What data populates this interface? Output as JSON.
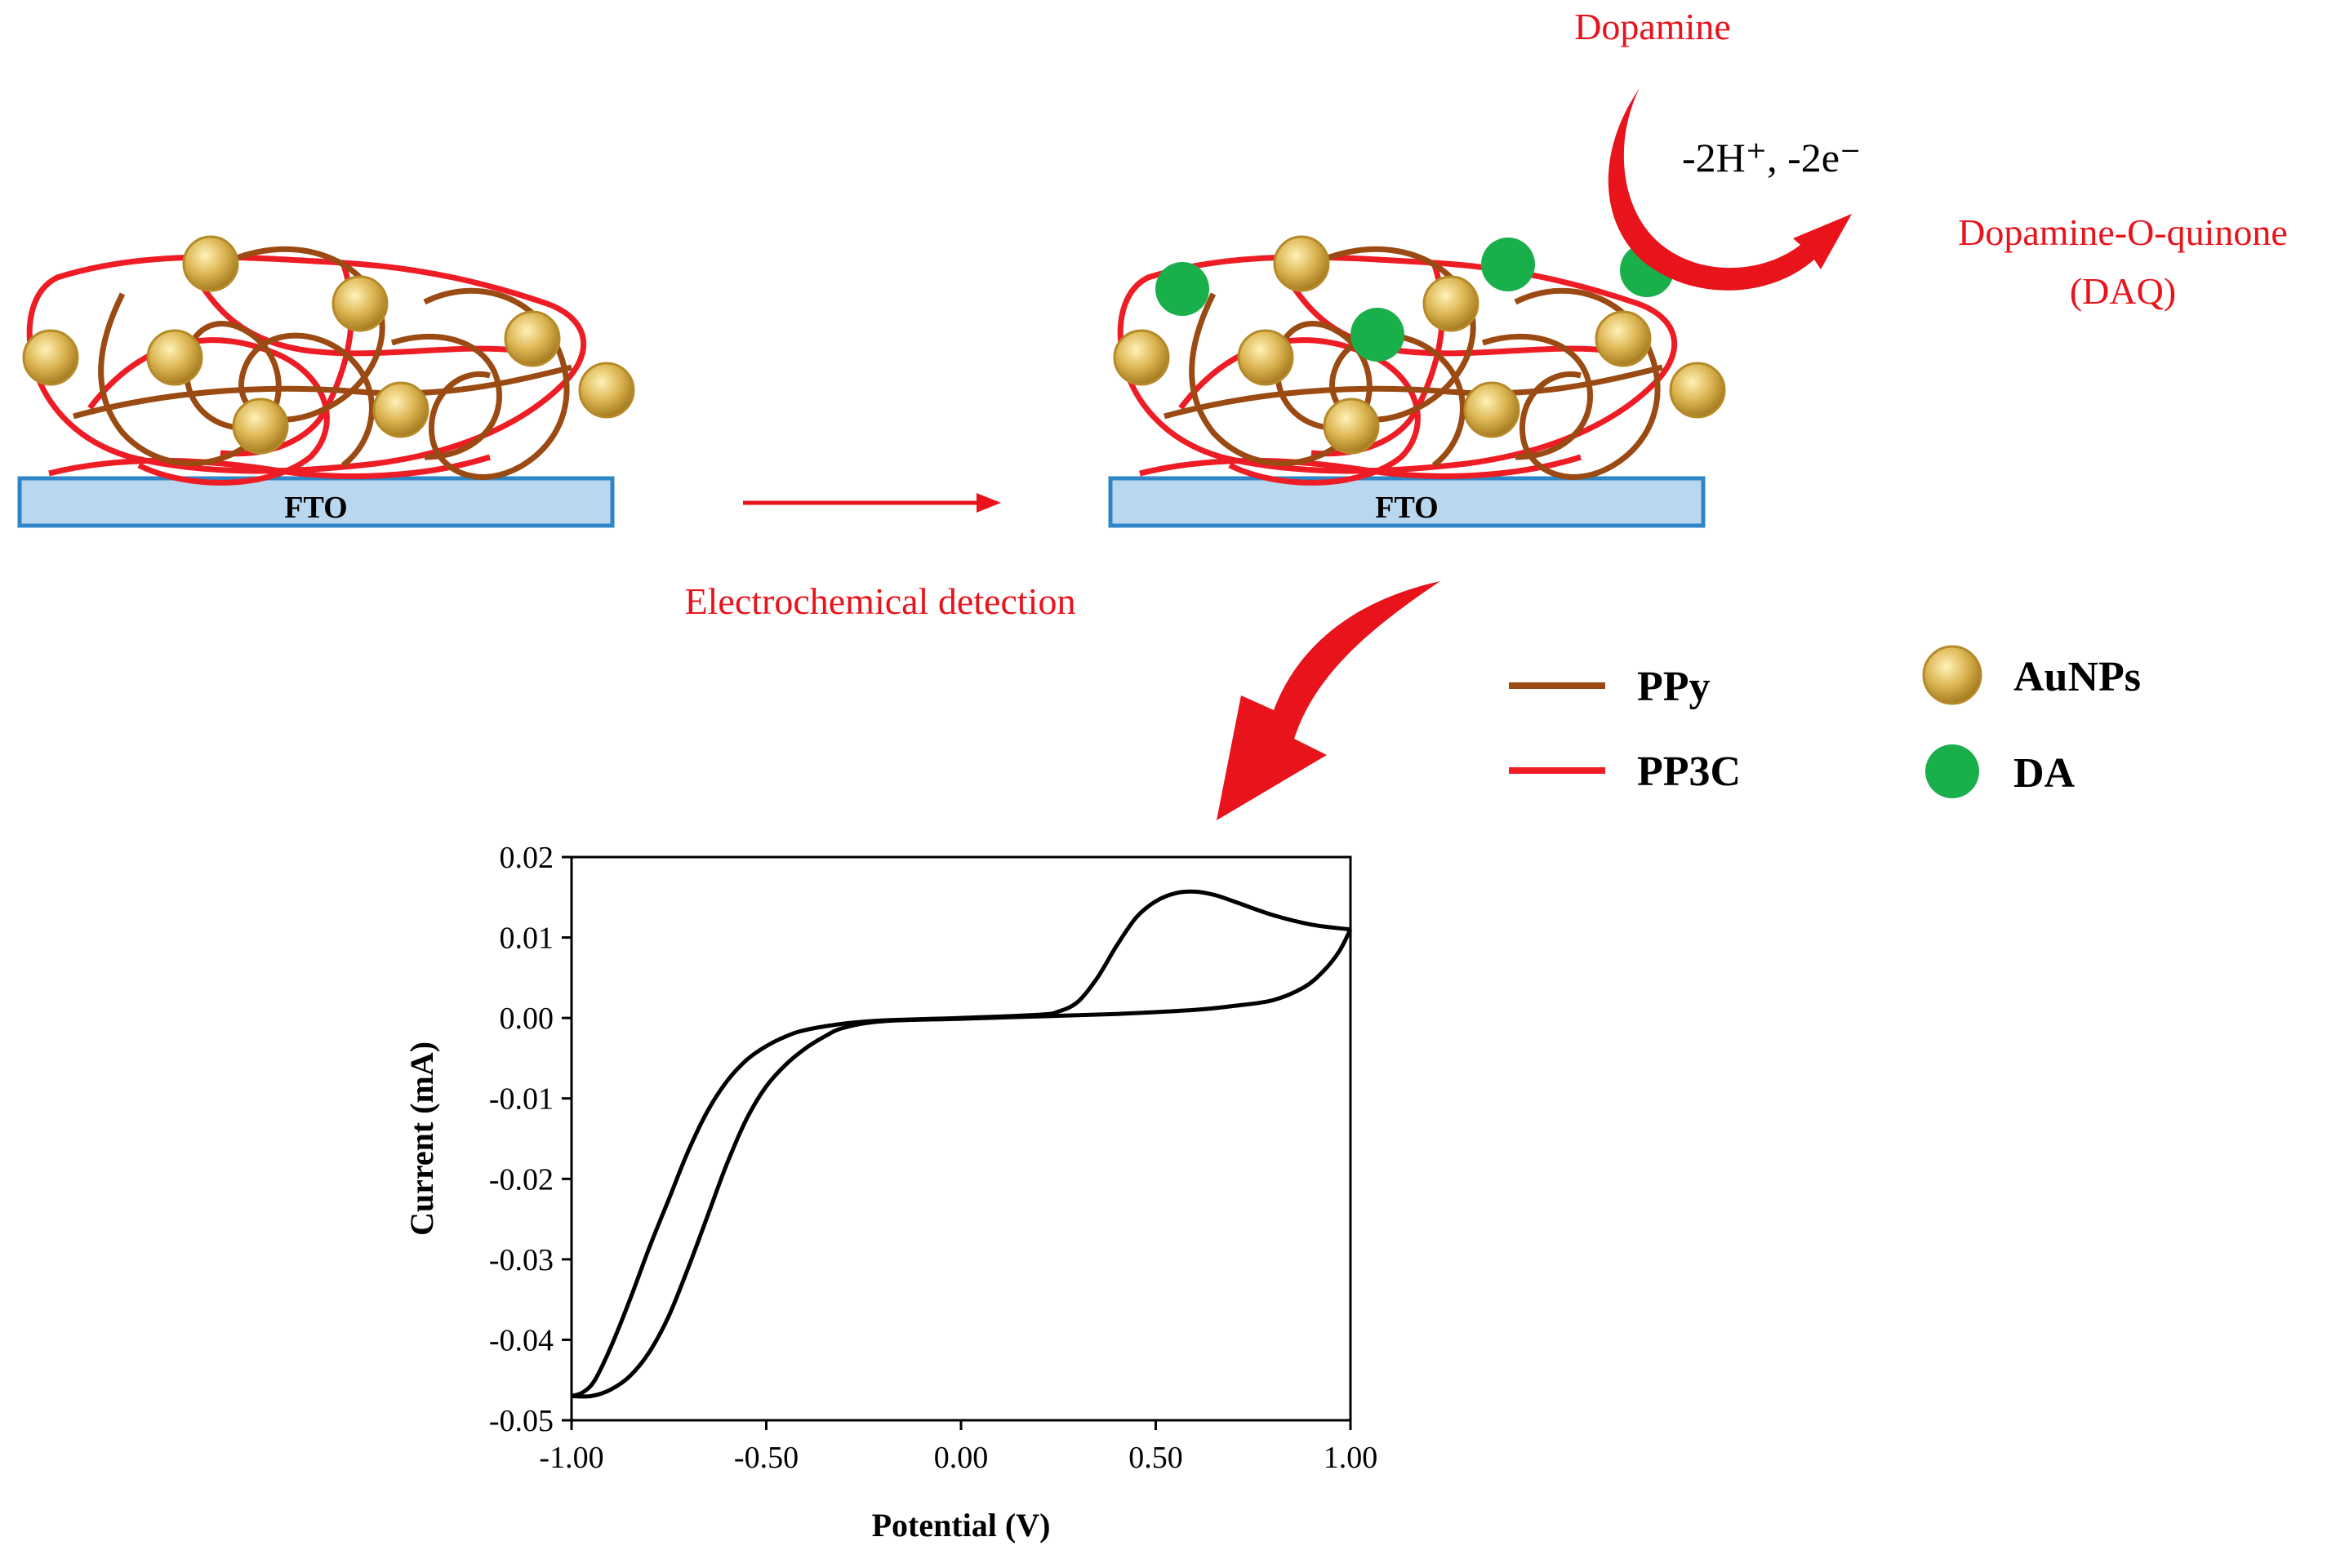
{
  "labels": {
    "fto_left": "FTO",
    "fto_right": "FTO",
    "dopamine": "Dopamine",
    "reaction": "-2H⁺, -2e⁻",
    "product_line1": "Dopamine-O-quinone",
    "product_line2": "(DAQ)",
    "detection": "Electrochemical detection"
  },
  "legend": {
    "ppy": "PPy",
    "pp3c": "PP3C",
    "aunps": "AuNPs",
    "da": "DA"
  },
  "colors": {
    "ppy": "#9a4a12",
    "pp3c": "#ee1c24",
    "aunp": "#c9a340",
    "da": "#19b04b",
    "arrow": "#e8131b",
    "fto_fill": "#b9d7ee",
    "fto_stroke": "#2e86c7"
  },
  "chart_data": {
    "type": "line",
    "xlabel": "Potential (V)",
    "ylabel": "Current (mA)",
    "xlim": [
      -1.0,
      1.0
    ],
    "ylim": [
      -0.05,
      0.02
    ],
    "x_ticks": [
      "-1.00",
      "-0.50",
      "0.00",
      "0.50",
      "1.00"
    ],
    "y_ticks": [
      "0.02",
      "0.01",
      "0.00",
      "-0.01",
      "-0.02",
      "-0.03",
      "-0.04",
      "-0.05"
    ],
    "series": [
      {
        "values_forward": [
          [
            -1.0,
            -0.047
          ],
          [
            -0.97,
            -0.0465
          ],
          [
            -0.94,
            -0.045
          ],
          [
            -0.9,
            -0.041
          ],
          [
            -0.85,
            -0.035
          ],
          [
            -0.8,
            -0.0285
          ],
          [
            -0.75,
            -0.0225
          ],
          [
            -0.7,
            -0.0165
          ],
          [
            -0.65,
            -0.0115
          ],
          [
            -0.6,
            -0.0078
          ],
          [
            -0.55,
            -0.0052
          ],
          [
            -0.5,
            -0.0035
          ],
          [
            -0.45,
            -0.0023
          ],
          [
            -0.4,
            -0.0015
          ],
          [
            -0.3,
            -0.0007
          ],
          [
            -0.2,
            -0.0003
          ],
          [
            0.0,
            0.0
          ],
          [
            0.2,
            0.0004
          ],
          [
            0.25,
            0.0008
          ],
          [
            0.3,
            0.002
          ],
          [
            0.35,
            0.005
          ],
          [
            0.4,
            0.009
          ],
          [
            0.45,
            0.0125
          ],
          [
            0.5,
            0.0145
          ],
          [
            0.55,
            0.0155
          ],
          [
            0.6,
            0.0157
          ],
          [
            0.65,
            0.0153
          ],
          [
            0.7,
            0.0145
          ],
          [
            0.8,
            0.0128
          ],
          [
            0.9,
            0.0116
          ],
          [
            1.0,
            0.011
          ]
        ],
        "values_reverse": [
          [
            1.0,
            0.011
          ],
          [
            0.97,
            0.0082
          ],
          [
            0.93,
            0.0058
          ],
          [
            0.88,
            0.0038
          ],
          [
            0.8,
            0.0022
          ],
          [
            0.7,
            0.0015
          ],
          [
            0.6,
            0.001
          ],
          [
            0.4,
            0.0005
          ],
          [
            0.2,
            0.0002
          ],
          [
            0.0,
            -0.0001
          ],
          [
            -0.2,
            -0.0004
          ],
          [
            -0.3,
            -0.0012
          ],
          [
            -0.35,
            -0.0023
          ],
          [
            -0.4,
            -0.0038
          ],
          [
            -0.45,
            -0.0058
          ],
          [
            -0.5,
            -0.0085
          ],
          [
            -0.55,
            -0.0125
          ],
          [
            -0.6,
            -0.018
          ],
          [
            -0.65,
            -0.0245
          ],
          [
            -0.7,
            -0.031
          ],
          [
            -0.75,
            -0.037
          ],
          [
            -0.8,
            -0.0415
          ],
          [
            -0.85,
            -0.0445
          ],
          [
            -0.9,
            -0.0462
          ],
          [
            -0.95,
            -0.047
          ],
          [
            -1.0,
            -0.047
          ]
        ]
      }
    ]
  }
}
